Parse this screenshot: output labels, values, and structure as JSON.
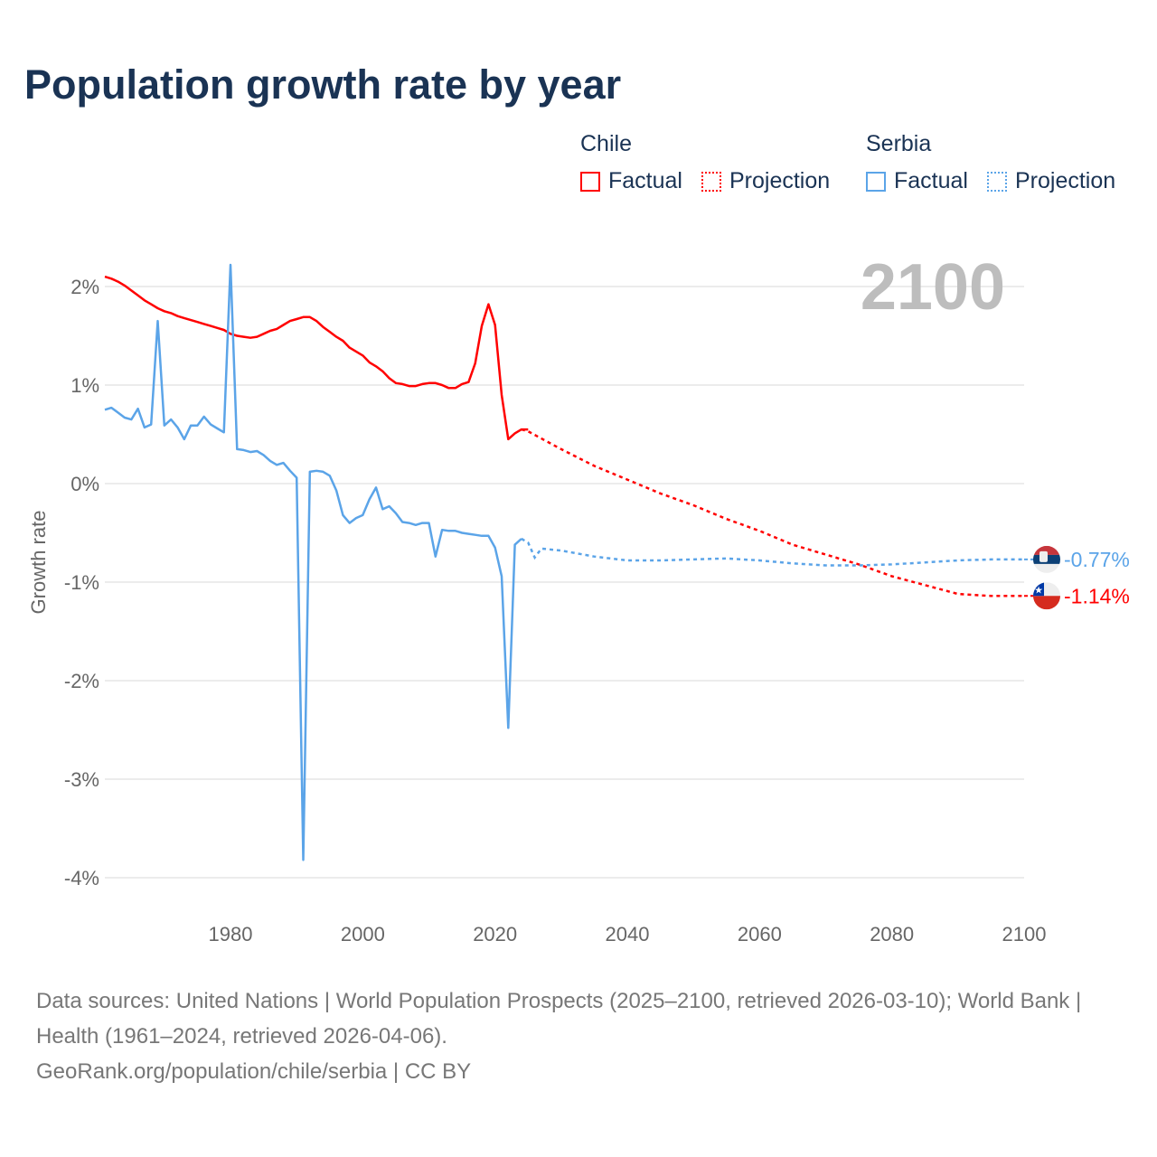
{
  "title": "Population growth rate by year",
  "legend": {
    "groups": [
      {
        "name": "Chile",
        "color": "#ff0000",
        "items": [
          "Factual",
          "Projection"
        ]
      },
      {
        "name": "Serbia",
        "color": "#5ba4e8",
        "items": [
          "Factual",
          "Projection"
        ]
      }
    ]
  },
  "year_label": "2100",
  "footer": {
    "sources": "Data sources: United Nations | World Population Prospects (2025–2100, retrieved 2026-03-10); World Bank | Health (1961–2024, retrieved 2026-04-06).",
    "credit": "GeoRank.org/population/chile/serbia | CC BY"
  },
  "chart_data": {
    "type": "line",
    "title": "Population growth rate by year",
    "xlabel": "",
    "ylabel": "Growth rate",
    "xlim": [
      1961,
      2100
    ],
    "ylim": [
      -4.2,
      2.3
    ],
    "xticks": [
      1980,
      2000,
      2020,
      2040,
      2060,
      2080,
      2100
    ],
    "xtick_labels": [
      "1980",
      "2000",
      "2020",
      "2040",
      "2060",
      "2080",
      "2100"
    ],
    "yticks": [
      2,
      1,
      0,
      -1,
      -2,
      -3,
      -4
    ],
    "ytick_labels": [
      "2%",
      "1%",
      "0%",
      "-1%",
      "-2%",
      "-3%",
      "-4%"
    ],
    "grid": true,
    "series": [
      {
        "name": "Chile",
        "color": "#ff0000",
        "end_label": "-1.14%",
        "factual": {
          "start": 1961,
          "values": [
            2.1,
            2.08,
            2.05,
            2.01,
            1.96,
            1.91,
            1.86,
            1.82,
            1.78,
            1.75,
            1.73,
            1.7,
            1.68,
            1.66,
            1.64,
            1.62,
            1.6,
            1.58,
            1.56,
            1.52,
            1.5,
            1.49,
            1.48,
            1.49,
            1.52,
            1.55,
            1.57,
            1.61,
            1.65,
            1.67,
            1.69,
            1.69,
            1.65,
            1.59,
            1.54,
            1.49,
            1.45,
            1.38,
            1.34,
            1.3,
            1.23,
            1.19,
            1.14,
            1.07,
            1.02,
            1.01,
            0.99,
            0.99,
            1.01,
            1.02,
            1.02,
            1.0,
            0.97,
            0.97,
            1.01,
            1.03,
            1.22,
            1.6,
            1.82,
            1.61,
            0.9,
            0.45,
            0.51,
            0.55,
            0.55
          ]
        },
        "projection": {
          "x": [
            2024,
            2025,
            2030,
            2035,
            2040,
            2045,
            2050,
            2055,
            2060,
            2065,
            2070,
            2075,
            2080,
            2085,
            2090,
            2095,
            2100
          ],
          "values": [
            0.55,
            0.53,
            0.35,
            0.18,
            0.04,
            -0.1,
            -0.22,
            -0.36,
            -0.48,
            -0.62,
            -0.72,
            -0.82,
            -0.94,
            -1.03,
            -1.12,
            -1.14,
            -1.14
          ]
        }
      },
      {
        "name": "Serbia",
        "color": "#5ba4e8",
        "end_label": "-0.77%",
        "factual": {
          "start": 1961,
          "values": [
            0.75,
            0.77,
            0.72,
            0.67,
            0.65,
            0.76,
            0.57,
            0.6,
            1.65,
            0.59,
            0.65,
            0.57,
            0.45,
            0.59,
            0.59,
            0.68,
            0.6,
            0.56,
            0.52,
            2.22,
            0.35,
            0.34,
            0.32,
            0.33,
            0.29,
            0.23,
            0.19,
            0.21,
            0.13,
            0.06,
            -3.82,
            0.12,
            0.13,
            0.12,
            0.08,
            -0.07,
            -0.32,
            -0.4,
            -0.35,
            -0.32,
            -0.16,
            -0.04,
            -0.26,
            -0.23,
            -0.3,
            -0.39,
            -0.4,
            -0.42,
            -0.4,
            -0.4,
            -0.74,
            -0.47,
            -0.48,
            -0.48,
            -0.5,
            -0.51,
            -0.52,
            -0.53,
            -0.53,
            -0.65,
            -0.94,
            -2.48,
            -0.62,
            -0.56
          ]
        },
        "projection": {
          "x": [
            2024,
            2025,
            2026,
            2027,
            2030,
            2035,
            2040,
            2045,
            2050,
            2055,
            2060,
            2065,
            2070,
            2075,
            2080,
            2085,
            2090,
            2095,
            2100
          ],
          "values": [
            -0.56,
            -0.6,
            -0.75,
            -0.66,
            -0.68,
            -0.74,
            -0.78,
            -0.78,
            -0.77,
            -0.76,
            -0.78,
            -0.81,
            -0.83,
            -0.83,
            -0.82,
            -0.8,
            -0.78,
            -0.77,
            -0.77
          ]
        }
      }
    ]
  }
}
